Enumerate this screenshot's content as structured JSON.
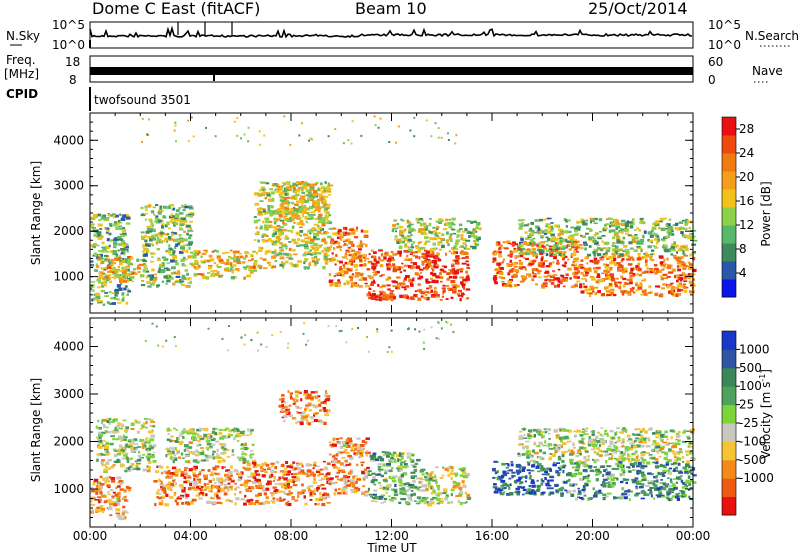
{
  "header": {
    "station": "Dome C East (fitACF)",
    "beam": "Beam 10",
    "date": "25/Oct/2014"
  },
  "status_panels": {
    "nsky": {
      "label": "N.Sky",
      "tick_top": "10^5",
      "tick_bottom": "10^0"
    },
    "nsearch": {
      "label": "N.Search",
      "tick_top": "10^5",
      "tick_bottom": "10^0"
    },
    "freq": {
      "label_line1": "Freq.",
      "label_line2": "[MHz]",
      "tick_top": "18",
      "tick_bottom": "8"
    },
    "nave": {
      "label": "Nave",
      "tick_top": "60",
      "tick_bottom": "0"
    },
    "cpid": {
      "label": "CPID",
      "value": "twofsound 3501"
    }
  },
  "chart_data": [
    {
      "type": "heatmap",
      "name": "power",
      "ylabel": "Slant Range [km]",
      "yticks": [
        "1000",
        "2000",
        "3000",
        "4000"
      ],
      "ylim": [
        200,
        4600
      ],
      "xlim_hours": [
        0,
        24
      ],
      "colorbar": {
        "label": "Power [dB]",
        "tick_labels": [
          "4",
          "8",
          "12",
          "16",
          "20",
          "24",
          "28"
        ],
        "colors": [
          "#0a14e6",
          "#2b57a8",
          "#3f8a5c",
          "#58b86a",
          "#8ed04a",
          "#f2c21a",
          "#f59e1a",
          "#f27a12",
          "#ee4a10",
          "#e81010"
        ]
      },
      "regions": [
        {
          "t0": 0.0,
          "t1": 1.5,
          "r0": 400,
          "r1": 2400,
          "level": 0.35
        },
        {
          "t0": 0.2,
          "t1": 2.0,
          "r0": 900,
          "r1": 1500,
          "level": 0.6
        },
        {
          "t0": 2.0,
          "t1": 4.0,
          "r0": 800,
          "r1": 2600,
          "level": 0.4
        },
        {
          "t0": 4.0,
          "t1": 6.5,
          "r0": 1000,
          "r1": 1600,
          "level": 0.6
        },
        {
          "t0": 6.5,
          "t1": 9.5,
          "r0": 1200,
          "r1": 3100,
          "level": 0.5
        },
        {
          "t0": 7.5,
          "t1": 9.5,
          "r0": 2200,
          "r1": 3100,
          "level": 0.55
        },
        {
          "t0": 9.5,
          "t1": 11.0,
          "r0": 800,
          "r1": 2100,
          "level": 0.75
        },
        {
          "t0": 11.0,
          "t1": 15.0,
          "r0": 500,
          "r1": 1600,
          "level": 0.85
        },
        {
          "t0": 12.0,
          "t1": 15.5,
          "r0": 1600,
          "r1": 2300,
          "level": 0.45
        },
        {
          "t0": 16.0,
          "t1": 19.5,
          "r0": 800,
          "r1": 1800,
          "level": 0.8
        },
        {
          "t0": 19.5,
          "t1": 24.0,
          "r0": 600,
          "r1": 1500,
          "level": 0.75
        },
        {
          "t0": 17.0,
          "t1": 24.0,
          "r0": 1500,
          "r1": 2300,
          "level": 0.4
        }
      ]
    },
    {
      "type": "heatmap",
      "name": "velocity",
      "ylabel": "Slant Range [km]",
      "yticks": [
        "1000",
        "2000",
        "3000",
        "4000"
      ],
      "ylim": [
        200,
        4600
      ],
      "xlim_hours": [
        0,
        24
      ],
      "xticks": [
        "00:00",
        "04:00",
        "08:00",
        "12:00",
        "16:00",
        "20:00",
        "00:00"
      ],
      "xlabel": "Time UT",
      "colorbar": {
        "label_main": "Velocity",
        "label_units": "[m s",
        "label_exp": "-1",
        "label_close": "]",
        "tick_labels": [
          "1000",
          "500",
          "100",
          "25",
          "-25",
          "-100",
          "-500",
          "-1000"
        ],
        "colors": [
          "#1838c8",
          "#2f55a2",
          "#3b8758",
          "#4ea35c",
          "#7cd43a",
          "#c8c8c0",
          "#f6c432",
          "#f48a1c",
          "#ee5a12",
          "#e81010"
        ]
      },
      "regions": [
        {
          "t0": 0.0,
          "t1": 1.5,
          "r0": 400,
          "r1": 1300,
          "level": 0.72
        },
        {
          "t0": 0.2,
          "t1": 2.5,
          "r0": 1400,
          "r1": 2500,
          "level": 0.5
        },
        {
          "t0": 2.5,
          "t1": 6.0,
          "r0": 700,
          "r1": 1500,
          "level": 0.75
        },
        {
          "t0": 3.0,
          "t1": 6.5,
          "r0": 1600,
          "r1": 2300,
          "level": 0.5
        },
        {
          "t0": 6.0,
          "t1": 9.5,
          "r0": 700,
          "r1": 1600,
          "level": 0.78
        },
        {
          "t0": 7.5,
          "t1": 9.5,
          "r0": 2400,
          "r1": 3100,
          "level": 0.75
        },
        {
          "t0": 9.5,
          "t1": 11.0,
          "r0": 900,
          "r1": 2100,
          "level": 0.72
        },
        {
          "t0": 11.0,
          "t1": 13.0,
          "r0": 700,
          "r1": 1800,
          "level": 0.4
        },
        {
          "t0": 13.0,
          "t1": 15.0,
          "r0": 700,
          "r1": 1500,
          "level": 0.52
        },
        {
          "t0": 16.0,
          "t1": 19.0,
          "r0": 900,
          "r1": 1600,
          "level": 0.2
        },
        {
          "t0": 19.0,
          "t1": 24.0,
          "r0": 800,
          "r1": 1600,
          "level": 0.3
        },
        {
          "t0": 17.0,
          "t1": 24.0,
          "r0": 1600,
          "r1": 2300,
          "level": 0.5
        }
      ]
    }
  ]
}
